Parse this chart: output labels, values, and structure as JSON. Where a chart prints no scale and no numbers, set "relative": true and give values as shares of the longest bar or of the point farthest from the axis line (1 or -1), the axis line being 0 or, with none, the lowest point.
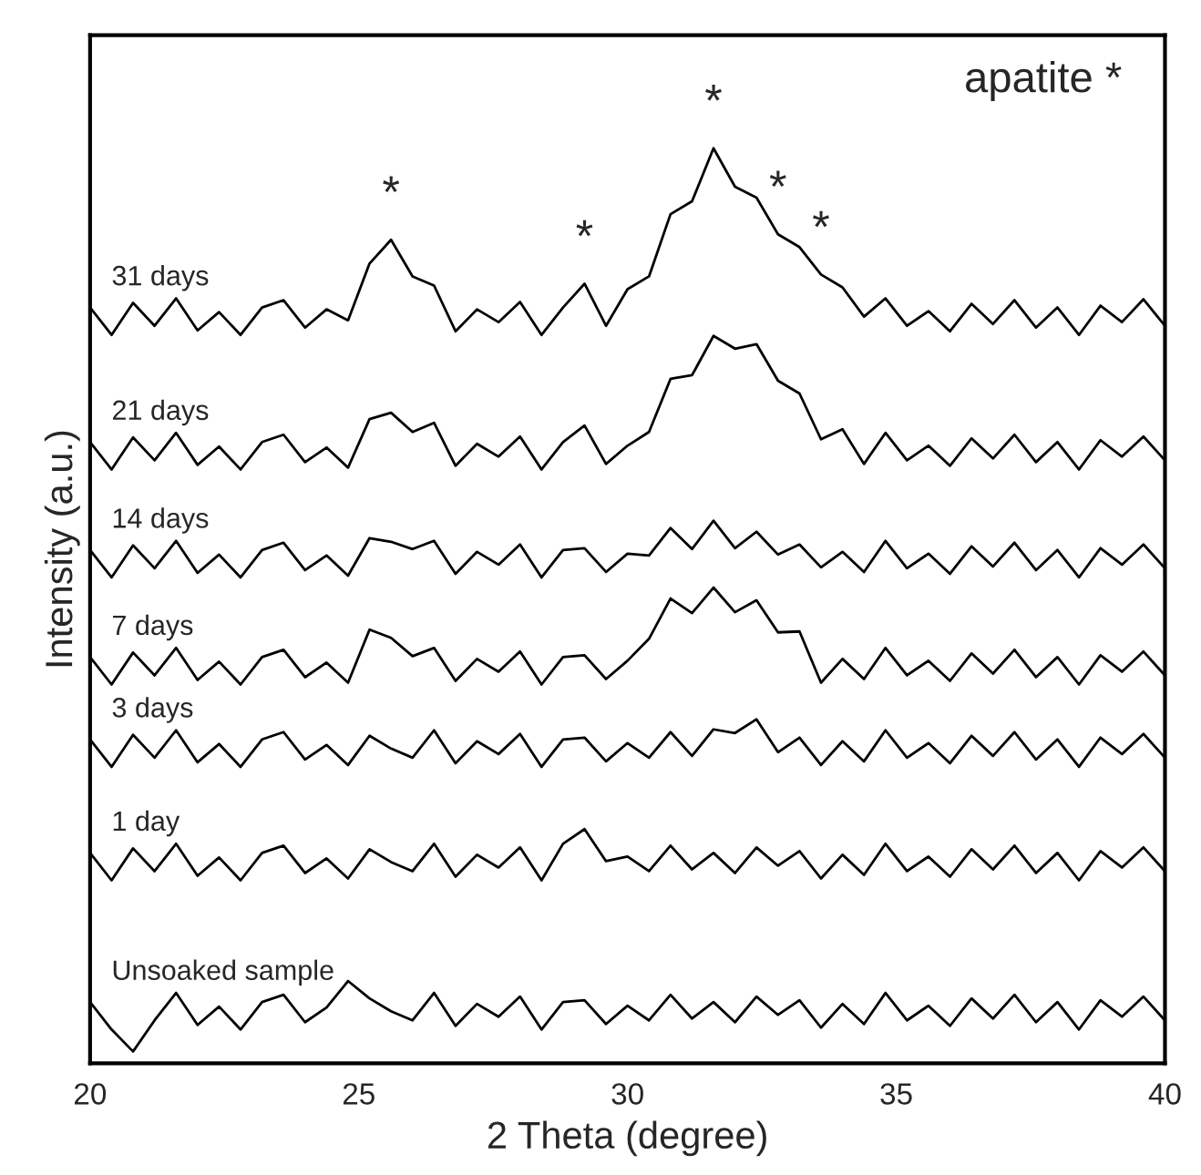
{
  "chart_data": {
    "type": "line",
    "relative": true,
    "xlabel": "2 Theta (degree)",
    "ylabel": "Intensity (a.u.)",
    "xlim": [
      20,
      40
    ],
    "xticks": [
      20,
      25,
      30,
      35,
      40
    ],
    "tick_labels": "x",
    "grid": false,
    "legend": false,
    "marker": "none",
    "line_style": "solid",
    "x": [
      20,
      20.4,
      20.8,
      21.2,
      21.6,
      22,
      22.4,
      22.8,
      23.2,
      23.6,
      24,
      24.4,
      24.8,
      25.2,
      25.6,
      26,
      26.4,
      26.8,
      27.2,
      27.6,
      28,
      28.4,
      28.8,
      29.2,
      29.6,
      30,
      30.4,
      30.8,
      31.2,
      31.6,
      32,
      32.4,
      32.8,
      33.2,
      33.6,
      34,
      34.4,
      34.8,
      35.2,
      35.6,
      36,
      36.4,
      36.8,
      37.2,
      37.6,
      38,
      38.4,
      38.8,
      39.2,
      39.6,
      40
    ],
    "series": [
      {
        "name": "31 days",
        "color": "#000000",
        "values": [
          0.826,
          0.796,
          0.831,
          0.806,
          0.836,
          0.801,
          0.821,
          0.796,
          0.826,
          0.834,
          0.804,
          0.824,
          0.812,
          0.874,
          0.9,
          0.86,
          0.85,
          0.8,
          0.824,
          0.81,
          0.832,
          0.796,
          0.826,
          0.852,
          0.806,
          0.846,
          0.86,
          0.928,
          0.942,
          1.0,
          0.958,
          0.946,
          0.906,
          0.892,
          0.862,
          0.848,
          0.816,
          0.836,
          0.806,
          0.822,
          0.8,
          0.83,
          0.808,
          0.834,
          0.804,
          0.826,
          0.796,
          0.828,
          0.81,
          0.835,
          0.806
        ]
      },
      {
        "name": "21 days",
        "color": "#000000",
        "values": [
          0.679,
          0.649,
          0.684,
          0.659,
          0.689,
          0.654,
          0.674,
          0.649,
          0.679,
          0.687,
          0.657,
          0.673,
          0.651,
          0.704,
          0.711,
          0.69,
          0.7,
          0.653,
          0.677,
          0.663,
          0.685,
          0.649,
          0.679,
          0.697,
          0.655,
          0.675,
          0.69,
          0.748,
          0.752,
          0.795,
          0.781,
          0.786,
          0.746,
          0.732,
          0.682,
          0.693,
          0.655,
          0.689,
          0.659,
          0.675,
          0.653,
          0.683,
          0.661,
          0.687,
          0.657,
          0.679,
          0.649,
          0.681,
          0.663,
          0.685,
          0.659
        ]
      },
      {
        "name": "14 days",
        "color": "#000000",
        "values": [
          0.561,
          0.531,
          0.566,
          0.541,
          0.571,
          0.536,
          0.556,
          0.531,
          0.561,
          0.569,
          0.539,
          0.555,
          0.533,
          0.574,
          0.57,
          0.562,
          0.571,
          0.535,
          0.559,
          0.545,
          0.567,
          0.531,
          0.561,
          0.563,
          0.537,
          0.557,
          0.555,
          0.585,
          0.562,
          0.593,
          0.563,
          0.581,
          0.556,
          0.567,
          0.542,
          0.559,
          0.537,
          0.571,
          0.541,
          0.557,
          0.535,
          0.565,
          0.543,
          0.569,
          0.539,
          0.561,
          0.531,
          0.563,
          0.545,
          0.567,
          0.541
        ]
      },
      {
        "name": "7 days",
        "color": "#000000",
        "values": [
          0.444,
          0.414,
          0.449,
          0.424,
          0.454,
          0.419,
          0.439,
          0.414,
          0.444,
          0.452,
          0.422,
          0.438,
          0.416,
          0.474,
          0.465,
          0.445,
          0.454,
          0.418,
          0.442,
          0.428,
          0.45,
          0.414,
          0.444,
          0.446,
          0.42,
          0.44,
          0.464,
          0.508,
          0.492,
          0.52,
          0.493,
          0.506,
          0.471,
          0.472,
          0.416,
          0.442,
          0.42,
          0.454,
          0.424,
          0.44,
          0.418,
          0.448,
          0.426,
          0.452,
          0.422,
          0.444,
          0.414,
          0.446,
          0.428,
          0.45,
          0.424
        ]
      },
      {
        "name": "3 days",
        "color": "#000000",
        "values": [
          0.354,
          0.324,
          0.359,
          0.334,
          0.364,
          0.329,
          0.349,
          0.324,
          0.354,
          0.362,
          0.332,
          0.348,
          0.326,
          0.358,
          0.344,
          0.334,
          0.364,
          0.328,
          0.352,
          0.338,
          0.36,
          0.324,
          0.354,
          0.356,
          0.33,
          0.35,
          0.334,
          0.362,
          0.336,
          0.365,
          0.361,
          0.376,
          0.34,
          0.356,
          0.326,
          0.352,
          0.33,
          0.364,
          0.334,
          0.35,
          0.328,
          0.358,
          0.336,
          0.362,
          0.332,
          0.354,
          0.324,
          0.356,
          0.338,
          0.36,
          0.334
        ]
      },
      {
        "name": "1 day",
        "color": "#000000",
        "values": [
          0.23,
          0.2,
          0.235,
          0.21,
          0.24,
          0.205,
          0.225,
          0.2,
          0.23,
          0.238,
          0.208,
          0.224,
          0.202,
          0.234,
          0.22,
          0.21,
          0.24,
          0.204,
          0.228,
          0.214,
          0.236,
          0.2,
          0.24,
          0.256,
          0.221,
          0.226,
          0.21,
          0.238,
          0.212,
          0.23,
          0.208,
          0.236,
          0.216,
          0.232,
          0.202,
          0.228,
          0.206,
          0.24,
          0.21,
          0.226,
          0.204,
          0.234,
          0.212,
          0.238,
          0.208,
          0.23,
          0.2,
          0.232,
          0.214,
          0.236,
          0.21
        ]
      },
      {
        "name": "Unsoaked sample",
        "color": "#000000",
        "values": [
          0.067,
          0.037,
          0.013,
          0.047,
          0.077,
          0.042,
          0.062,
          0.037,
          0.067,
          0.075,
          0.045,
          0.061,
          0.09,
          0.071,
          0.057,
          0.047,
          0.077,
          0.041,
          0.065,
          0.051,
          0.073,
          0.037,
          0.067,
          0.069,
          0.043,
          0.063,
          0.047,
          0.075,
          0.049,
          0.067,
          0.045,
          0.073,
          0.053,
          0.069,
          0.039,
          0.065,
          0.043,
          0.077,
          0.047,
          0.063,
          0.041,
          0.071,
          0.049,
          0.075,
          0.045,
          0.067,
          0.037,
          0.069,
          0.051,
          0.073,
          0.047
        ]
      }
    ],
    "annotations": [
      "apatite *",
      {
        "text": "*",
        "x": 25.6,
        "y": 0.9
      },
      {
        "text": "*",
        "x": 29.2,
        "y": 0.852
      },
      {
        "text": "*",
        "x": 31.6,
        "y": 1.0
      },
      {
        "text": "*",
        "x": 32.8,
        "y": 0.906
      },
      {
        "text": "*",
        "x": 33.6,
        "y": 0.862
      }
    ]
  }
}
